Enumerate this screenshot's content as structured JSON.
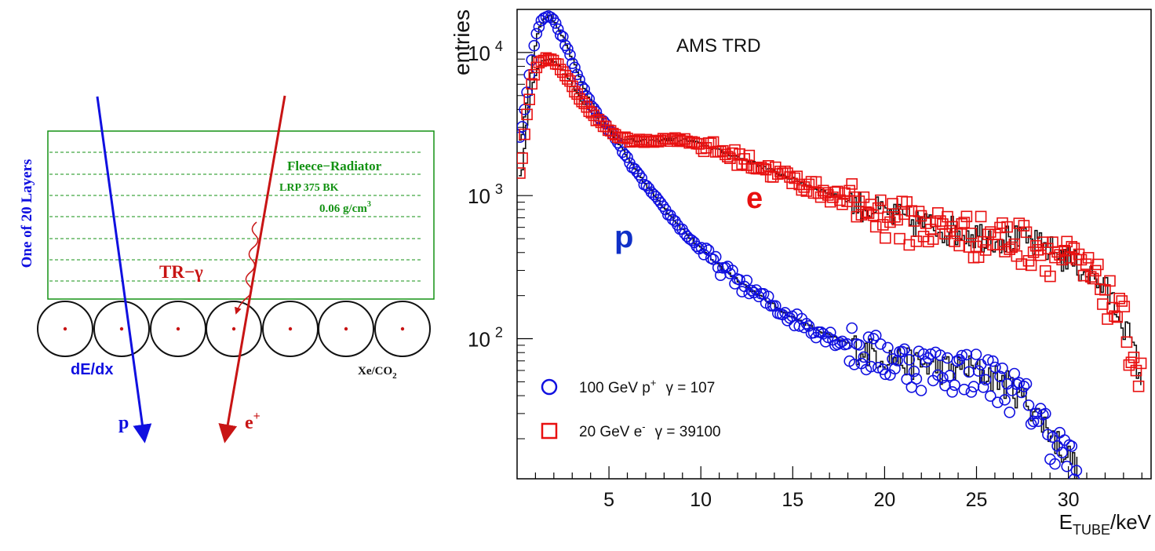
{
  "diagram": {
    "layer_label": "One of 20 Layers",
    "radiator_name": "Fleece−Radiator",
    "radiator_material": "LRP 375 BK",
    "radiator_density": "0.06 g/cm",
    "radiator_density_sup": "3",
    "tr_label": "TR−γ",
    "dedx_label": "dE/dx",
    "gas_label_main": "Xe/CO",
    "gas_label_sub": "2",
    "proton_label": "p",
    "positron_label": "e",
    "positron_sup": "+",
    "colors": {
      "proton": "#1010e0",
      "electron": "#c81414",
      "radiator": "#139213"
    }
  },
  "chart_data": {
    "type": "scatter",
    "title": "AMS TRD",
    "ylabel": "entries",
    "xlabel": "E",
    "xlabel_sub": "TUBE",
    "xlabel_unit": "/keV",
    "xlim": [
      0,
      34.5
    ],
    "ylim": [
      10.5,
      20000
    ],
    "yscale": "log",
    "x_ticks": [
      5,
      10,
      15,
      20,
      25,
      30
    ],
    "y_ticks": [
      {
        "base": "10",
        "exp": "4"
      },
      {
        "base": "10",
        "exp": "3"
      },
      {
        "base": "10",
        "exp": "2"
      }
    ],
    "curve_labels": {
      "proton": "p",
      "electron": "e"
    },
    "series": [
      {
        "name": "100 GeV p+",
        "legend_main": "100 GeV p",
        "legend_sup": "+",
        "legend_gamma": "γ = 107",
        "marker": "circle",
        "color": "#1010e0",
        "points": [
          [
            0.2,
            2500
          ],
          [
            0.5,
            5000
          ],
          [
            0.8,
            9000
          ],
          [
            1.1,
            14000
          ],
          [
            1.4,
            17500
          ],
          [
            1.7,
            18000
          ],
          [
            2.0,
            16500
          ],
          [
            2.5,
            12500
          ],
          [
            3.0,
            8600
          ],
          [
            3.5,
            6000
          ],
          [
            4.0,
            4400
          ],
          [
            4.5,
            3500
          ],
          [
            5.0,
            2900
          ],
          [
            5.5,
            2300
          ],
          [
            6.0,
            1800
          ],
          [
            6.5,
            1450
          ],
          [
            7.0,
            1180
          ],
          [
            7.5,
            980
          ],
          [
            8.0,
            810
          ],
          [
            8.5,
            680
          ],
          [
            9.0,
            570
          ],
          [
            9.5,
            485
          ],
          [
            10.0,
            420
          ],
          [
            11.0,
            320
          ],
          [
            12.0,
            255
          ],
          [
            13.0,
            205
          ],
          [
            14.0,
            168
          ],
          [
            15.0,
            140
          ],
          [
            16.0,
            120
          ],
          [
            17.0,
            104
          ],
          [
            18.0,
            92
          ],
          [
            19.0,
            83
          ],
          [
            20.0,
            76
          ],
          [
            21.0,
            70
          ],
          [
            22.0,
            66
          ],
          [
            23.0,
            63
          ],
          [
            24.0,
            62
          ],
          [
            24.5,
            63
          ],
          [
            25.0,
            60
          ],
          [
            26.0,
            54
          ],
          [
            27.0,
            45
          ],
          [
            28.0,
            34
          ],
          [
            29.0,
            22
          ],
          [
            29.5,
            18
          ],
          [
            30.0,
            15
          ],
          [
            30.5,
            12
          ]
        ]
      },
      {
        "name": "20 GeV e-",
        "legend_main": "20 GeV e",
        "legend_sup": "-",
        "legend_gamma": "γ = 39100",
        "marker": "square",
        "color": "#e81010",
        "points": [
          [
            0.2,
            1400
          ],
          [
            0.5,
            3500
          ],
          [
            0.8,
            6000
          ],
          [
            1.1,
            8200
          ],
          [
            1.5,
            9200
          ],
          [
            2.0,
            8700
          ],
          [
            2.5,
            7400
          ],
          [
            3.0,
            5800
          ],
          [
            3.5,
            4600
          ],
          [
            4.0,
            3800
          ],
          [
            4.5,
            3250
          ],
          [
            5.0,
            2850
          ],
          [
            5.5,
            2600
          ],
          [
            6.0,
            2450
          ],
          [
            6.5,
            2400
          ],
          [
            7.0,
            2400
          ],
          [
            7.5,
            2430
          ],
          [
            8.0,
            2470
          ],
          [
            8.5,
            2480
          ],
          [
            9.0,
            2450
          ],
          [
            9.5,
            2380
          ],
          [
            10.0,
            2280
          ],
          [
            11.0,
            2050
          ],
          [
            12.0,
            1850
          ],
          [
            13.0,
            1650
          ],
          [
            14.0,
            1460
          ],
          [
            15.0,
            1300
          ],
          [
            16.0,
            1150
          ],
          [
            17.0,
            1030
          ],
          [
            18.0,
            920
          ],
          [
            19.0,
            830
          ],
          [
            20.0,
            750
          ],
          [
            21.0,
            690
          ],
          [
            22.0,
            640
          ],
          [
            23.0,
            600
          ],
          [
            24.0,
            570
          ],
          [
            25.0,
            545
          ],
          [
            26.0,
            520
          ],
          [
            27.0,
            500
          ],
          [
            28.0,
            470
          ],
          [
            29.0,
            420
          ],
          [
            30.0,
            360
          ],
          [
            31.0,
            290
          ],
          [
            32.0,
            220
          ],
          [
            33.0,
            130
          ],
          [
            34.0,
            50
          ]
        ]
      }
    ]
  }
}
